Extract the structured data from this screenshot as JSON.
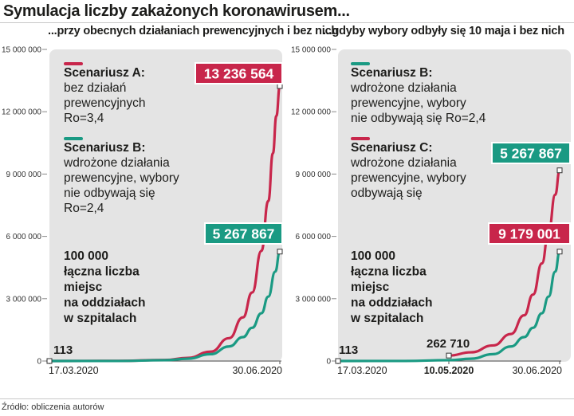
{
  "title": "Symulacja liczby zakażonych koronawirusem...",
  "source": "Źródło: obliczenia autorów",
  "colors": {
    "red": "#c8264b",
    "teal": "#1a9a83",
    "panel": "#e4e4e4"
  },
  "chart_data": [
    {
      "type": "line",
      "subtitle": "...przy obecnych działaniach prewencyjnych i bez nich",
      "ylim": [
        0,
        15000000
      ],
      "yticks": [
        "0",
        "3 000 000",
        "6 000 000",
        "9 000 000",
        "12 000 000",
        "15 000 000"
      ],
      "yticks_values": [
        0,
        3000000,
        6000000,
        9000000,
        12000000,
        15000000
      ],
      "x_labels": [
        {
          "text": "17.03.2020",
          "t": 0,
          "bold": false
        },
        {
          "text": "30.06.2020",
          "t": 1,
          "bold": false
        }
      ],
      "series": [
        {
          "name": "Scenariusz A:",
          "color": "red",
          "description": [
            "bez działań",
            "prewencyjnych",
            "Ro=3,4"
          ],
          "final_value_label": "13 236 564",
          "points": [
            [
              0,
              113
            ],
            [
              0.3,
              5000
            ],
            [
              0.5,
              50000
            ],
            [
              0.6,
              150000
            ],
            [
              0.7,
              450000
            ],
            [
              0.78,
              1100000
            ],
            [
              0.84,
              2100000
            ],
            [
              0.88,
              3300000
            ],
            [
              0.92,
              5300000
            ],
            [
              0.95,
              7700000
            ],
            [
              0.97,
              10000000
            ],
            [
              0.985,
              11800000
            ],
            [
              1,
              13236564
            ]
          ]
        },
        {
          "name": "Scenariusz B:",
          "color": "teal",
          "description": [
            "wdrożone działania",
            "prewencyjne, wybory",
            "nie odbywają się",
            "Ro=2,4"
          ],
          "final_value_label": "5 267 867",
          "points": [
            [
              0,
              113
            ],
            [
              0.3,
              3000
            ],
            [
              0.5,
              40000
            ],
            [
              0.6,
              110000
            ],
            [
              0.7,
              330000
            ],
            [
              0.78,
              700000
            ],
            [
              0.84,
              1150000
            ],
            [
              0.88,
              1600000
            ],
            [
              0.92,
              2300000
            ],
            [
              0.95,
              3100000
            ],
            [
              0.98,
              4300000
            ],
            [
              1,
              5267867
            ]
          ]
        }
      ],
      "annotations": {
        "start_label": "113",
        "note": [
          "100 000",
          "łączna liczba",
          "miejsc",
          "na oddziałach",
          "w szpitalach"
        ]
      }
    },
    {
      "type": "line",
      "subtitle": "...gdyby wybory odbyły się 10 maja i bez nich",
      "ylim": [
        0,
        15000000
      ],
      "yticks": [
        "0",
        "3 000 000",
        "6 000 000",
        "9 000 000",
        "12 000 000",
        "15 000 000"
      ],
      "yticks_values": [
        0,
        3000000,
        6000000,
        9000000,
        12000000,
        15000000
      ],
      "x_labels": [
        {
          "text": "17.03.2020",
          "t": 0,
          "bold": false
        },
        {
          "text": "10.05.2020",
          "t": 0.5,
          "bold": true
        },
        {
          "text": "30.06.2020",
          "t": 1,
          "bold": false
        }
      ],
      "series": [
        {
          "name": "Scenariusz B:",
          "color": "teal",
          "description": [
            "wdrożone działania",
            "prewencyjne, wybory",
            "nie odbywają się Ro=2,4"
          ],
          "final_value_label": "5 267 867",
          "points": [
            [
              0,
              113
            ],
            [
              0.3,
              3000
            ],
            [
              0.5,
              40000
            ],
            [
              0.6,
              110000
            ],
            [
              0.7,
              330000
            ],
            [
              0.78,
              700000
            ],
            [
              0.84,
              1150000
            ],
            [
              0.88,
              1600000
            ],
            [
              0.92,
              2300000
            ],
            [
              0.95,
              3100000
            ],
            [
              0.98,
              4300000
            ],
            [
              1,
              5267867
            ]
          ]
        },
        {
          "name": "Scenariusz C:",
          "color": "red",
          "description": [
            "wdrożone działania",
            "prewencyjne, wybory",
            "odbywają się"
          ],
          "final_value_label": "9 179 001",
          "points": [
            [
              0.5,
              262710
            ],
            [
              0.6,
              420000
            ],
            [
              0.7,
              750000
            ],
            [
              0.78,
              1300000
            ],
            [
              0.84,
              2200000
            ],
            [
              0.88,
              3200000
            ],
            [
              0.92,
              4700000
            ],
            [
              0.95,
              6200000
            ],
            [
              0.98,
              8000000
            ],
            [
              1,
              9179001
            ]
          ]
        }
      ],
      "annotations": {
        "start_label": "113",
        "mid_label": "262 710",
        "note": [
          "100 000",
          "łączna liczba",
          "miejsc",
          "na oddziałach",
          "w szpitalach"
        ]
      }
    }
  ]
}
